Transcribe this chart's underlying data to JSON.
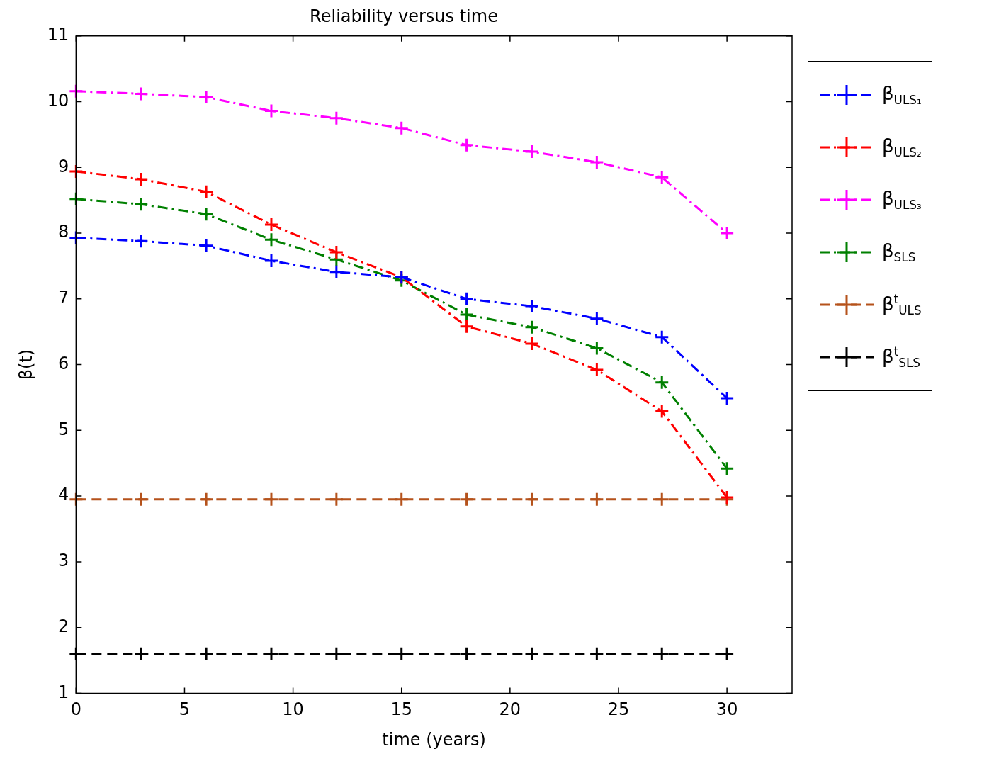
{
  "chart_data": {
    "type": "line",
    "title": "Reliability versus time",
    "xlabel": "time (years)",
    "ylabel": "β(t)",
    "x": [
      0,
      3,
      6,
      9,
      12,
      15,
      18,
      21,
      24,
      27,
      30
    ],
    "xlim": [
      0,
      33
    ],
    "xticks": [
      0,
      5,
      10,
      15,
      20,
      25,
      30
    ],
    "ylim": [
      1,
      11
    ],
    "yticks": [
      1,
      2,
      3,
      4,
      5,
      6,
      7,
      8,
      9,
      10,
      11
    ],
    "grid": false,
    "legend": "right",
    "marker": "cross",
    "series": [
      {
        "name": "β$_{ULS₁}$",
        "color": "#0000ff",
        "line_style": "dashdot",
        "values": [
          7.93,
          7.88,
          7.81,
          7.58,
          7.41,
          7.33,
          7.0,
          6.89,
          6.7,
          6.42,
          5.49
        ]
      },
      {
        "name": "β$_{ULS₂}$",
        "color": "#ff0000",
        "line_style": "dashdot",
        "values": [
          8.94,
          8.82,
          8.63,
          8.13,
          7.71,
          7.33,
          6.58,
          6.32,
          5.92,
          5.29,
          3.98
        ]
      },
      {
        "name": "β$_{ULS₃}$",
        "color": "#ff00ff",
        "line_style": "dashdot",
        "values": [
          10.16,
          10.12,
          10.07,
          9.86,
          9.75,
          9.6,
          9.34,
          9.24,
          9.08,
          8.85,
          8.0
        ]
      },
      {
        "name": "β$_{SLS}$",
        "color": "#008000",
        "line_style": "dashdot",
        "values": [
          8.52,
          8.44,
          8.29,
          7.9,
          7.6,
          7.28,
          6.76,
          6.57,
          6.25,
          5.73,
          4.42
        ]
      },
      {
        "name": "β$^{t}$$_{ULS}$",
        "color": "#b5521b",
        "line_style": "dashed",
        "values": [
          3.95,
          3.95,
          3.95,
          3.95,
          3.95,
          3.95,
          3.95,
          3.95,
          3.95,
          3.95,
          3.95
        ]
      },
      {
        "name": "β$^{t}$$_{SLS}$",
        "color": "#000000",
        "line_style": "dashed",
        "values": [
          1.6,
          1.6,
          1.6,
          1.6,
          1.6,
          1.6,
          1.6,
          1.6,
          1.6,
          1.6,
          1.6
        ]
      }
    ]
  }
}
